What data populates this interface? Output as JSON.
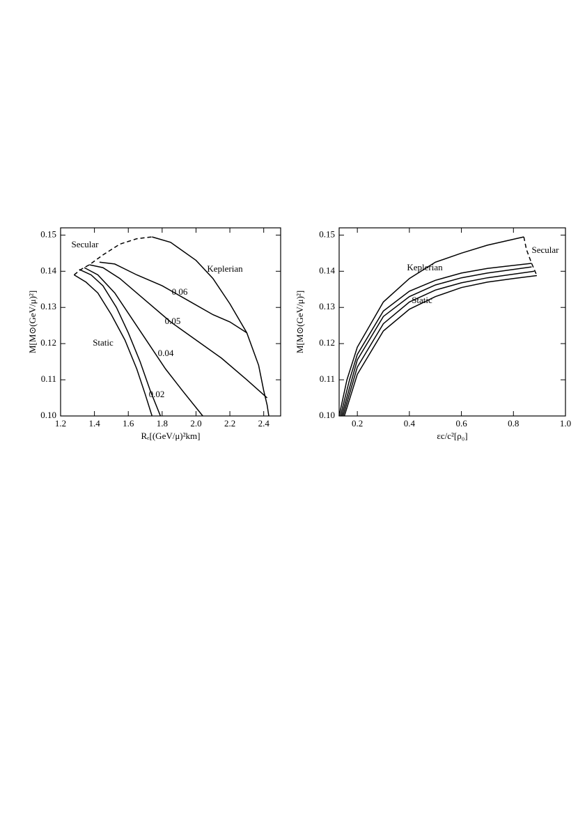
{
  "chart_data": [
    {
      "type": "line",
      "xlabel": "Rₑ[(GeV/μ)²km]",
      "ylabel": "M[M⊙(GeV/μ)²]",
      "xlim": [
        1.2,
        2.5
      ],
      "ylim": [
        0.1,
        0.152
      ],
      "xticks": [
        1.2,
        1.4,
        1.6,
        1.8,
        {
          "value": 2,
          "label": "2.0"
        },
        2.2,
        2.4
      ],
      "yticks": [
        {
          "value": 0.1,
          "label": "0.10"
        },
        0.11,
        0.12,
        0.13,
        0.14,
        0.15
      ],
      "series": [
        {
          "name": "Static",
          "color": "#000000",
          "x": [
            1.28,
            1.35,
            1.42,
            1.5,
            1.58,
            1.65,
            1.7,
            1.74
          ],
          "values": [
            0.139,
            0.137,
            0.134,
            0.128,
            0.121,
            0.113,
            0.106,
            0.1
          ]
        },
        {
          "name": "0.02",
          "color": "#000000",
          "x": [
            1.31,
            1.38,
            1.45,
            1.53,
            1.6,
            1.67,
            1.73,
            1.79
          ],
          "values": [
            0.1405,
            0.139,
            0.136,
            0.13,
            0.123,
            0.115,
            0.107,
            0.1
          ]
        },
        {
          "name": "0.04",
          "color": "#000000",
          "x": [
            1.34,
            1.42,
            1.52,
            1.62,
            1.72,
            1.82,
            1.92,
            2.04
          ],
          "values": [
            0.141,
            0.139,
            0.134,
            0.127,
            0.12,
            0.113,
            0.107,
            0.1
          ]
        },
        {
          "name": "0.05",
          "color": "#000000",
          "x": [
            1.37,
            1.45,
            1.55,
            1.7,
            1.85,
            2.0,
            2.15,
            2.3,
            2.42
          ],
          "values": [
            0.1418,
            0.141,
            0.138,
            0.132,
            0.126,
            0.121,
            0.116,
            0.11,
            0.105
          ]
        },
        {
          "name": "0.06",
          "color": "#000000",
          "x": [
            1.43,
            1.52,
            1.65,
            1.8,
            1.95,
            2.1,
            2.2,
            2.3
          ],
          "values": [
            0.1425,
            0.142,
            0.139,
            0.136,
            0.132,
            0.128,
            0.126,
            0.123
          ]
        },
        {
          "name": "Keplerian",
          "color": "#000000",
          "x": [
            1.74,
            1.85,
            2.0,
            2.1,
            2.2,
            2.3,
            2.37,
            2.4,
            2.42,
            2.43
          ],
          "values": [
            0.1495,
            0.148,
            0.143,
            0.138,
            0.131,
            0.123,
            0.114,
            0.107,
            0.103,
            0.1
          ]
        },
        {
          "name": "Secular",
          "color": "#000000",
          "dashed": true,
          "x": [
            1.28,
            1.32,
            1.37,
            1.45,
            1.55,
            1.65,
            1.74
          ],
          "values": [
            0.139,
            0.1405,
            0.1418,
            0.1445,
            0.1475,
            0.149,
            0.1495
          ]
        }
      ]
    },
    {
      "type": "line",
      "xlabel": "εc/c²[ρ₀]",
      "ylabel": "M[M⊙(GeV/μ)²]",
      "xlim": [
        0.13,
        1.0
      ],
      "ylim": [
        0.1,
        0.152
      ],
      "xticks": [
        0.2,
        0.4,
        0.6,
        0.8,
        {
          "value": 1,
          "label": "1.0"
        }
      ],
      "yticks": [
        {
          "value": 0.1,
          "label": "0.10"
        },
        0.11,
        0.12,
        0.13,
        0.14,
        0.15
      ],
      "series": [
        {
          "name": "Static",
          "color": "#000000",
          "x": [
            0.15,
            0.2,
            0.3,
            0.4,
            0.5,
            0.6,
            0.7,
            0.8,
            0.89
          ],
          "values": [
            0.1,
            0.1115,
            0.1235,
            0.1295,
            0.133,
            0.1355,
            0.137,
            0.138,
            0.1388
          ]
        },
        {
          "color": "#000000",
          "x": [
            0.145,
            0.2,
            0.3,
            0.4,
            0.5,
            0.6,
            0.7,
            0.88
          ],
          "values": [
            0.1,
            0.1135,
            0.1255,
            0.1315,
            0.1348,
            0.1368,
            0.1382,
            0.14
          ]
        },
        {
          "color": "#000000",
          "x": [
            0.14,
            0.2,
            0.3,
            0.4,
            0.5,
            0.6,
            0.7,
            0.87
          ],
          "values": [
            0.1,
            0.1155,
            0.1275,
            0.133,
            0.1362,
            0.1382,
            0.1395,
            0.1412
          ]
        },
        {
          "color": "#000000",
          "x": [
            0.135,
            0.17,
            0.2,
            0.3,
            0.4,
            0.5,
            0.6,
            0.7,
            0.87
          ],
          "values": [
            0.1,
            0.11,
            0.117,
            0.129,
            0.1345,
            0.1375,
            0.1395,
            0.1408,
            0.1422
          ]
        },
        {
          "name": "Keplerian",
          "color": "#000000",
          "x": [
            0.13,
            0.16,
            0.2,
            0.3,
            0.4,
            0.5,
            0.6,
            0.7,
            0.84
          ],
          "values": [
            0.1,
            0.11,
            0.119,
            0.1315,
            0.138,
            0.1425,
            0.145,
            0.1472,
            0.1495
          ]
        },
        {
          "name": "Secular",
          "color": "#000000",
          "dashed": true,
          "x": [
            0.84,
            0.85,
            0.87,
            0.89
          ],
          "values": [
            0.1495,
            0.146,
            0.1422,
            0.1388
          ]
        }
      ]
    }
  ]
}
